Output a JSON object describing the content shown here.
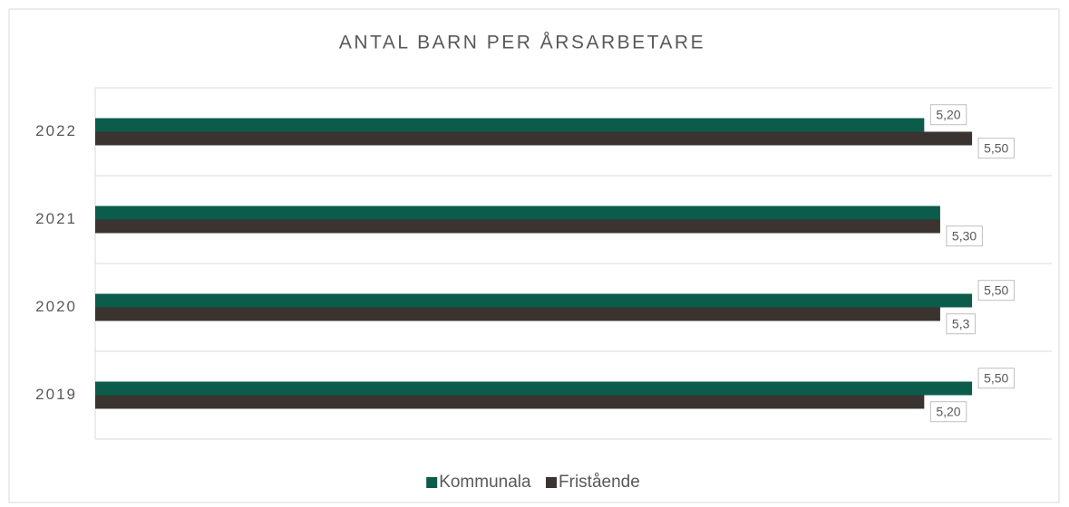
{
  "chart_data": {
    "type": "hbar",
    "title": "ANTAL BARN PER ÅRSARBETARE",
    "categories": [
      "2022",
      "2021",
      "2020",
      "2019"
    ],
    "series": [
      {
        "name": "Kommunala",
        "color": "#0b5c4a",
        "values": [
          5.2,
          5.3,
          5.5,
          5.5
        ],
        "value_labels": [
          "5,20",
          null,
          "5,50",
          "5,50"
        ]
      },
      {
        "name": "Fristående",
        "color": "#3b3330",
        "values": [
          5.5,
          5.3,
          5.3,
          5.2
        ],
        "value_labels": [
          "5,50",
          "5,30",
          "5,3",
          "5,20"
        ]
      }
    ],
    "xlim": [
      0,
      6
    ],
    "legend": "bottom"
  }
}
